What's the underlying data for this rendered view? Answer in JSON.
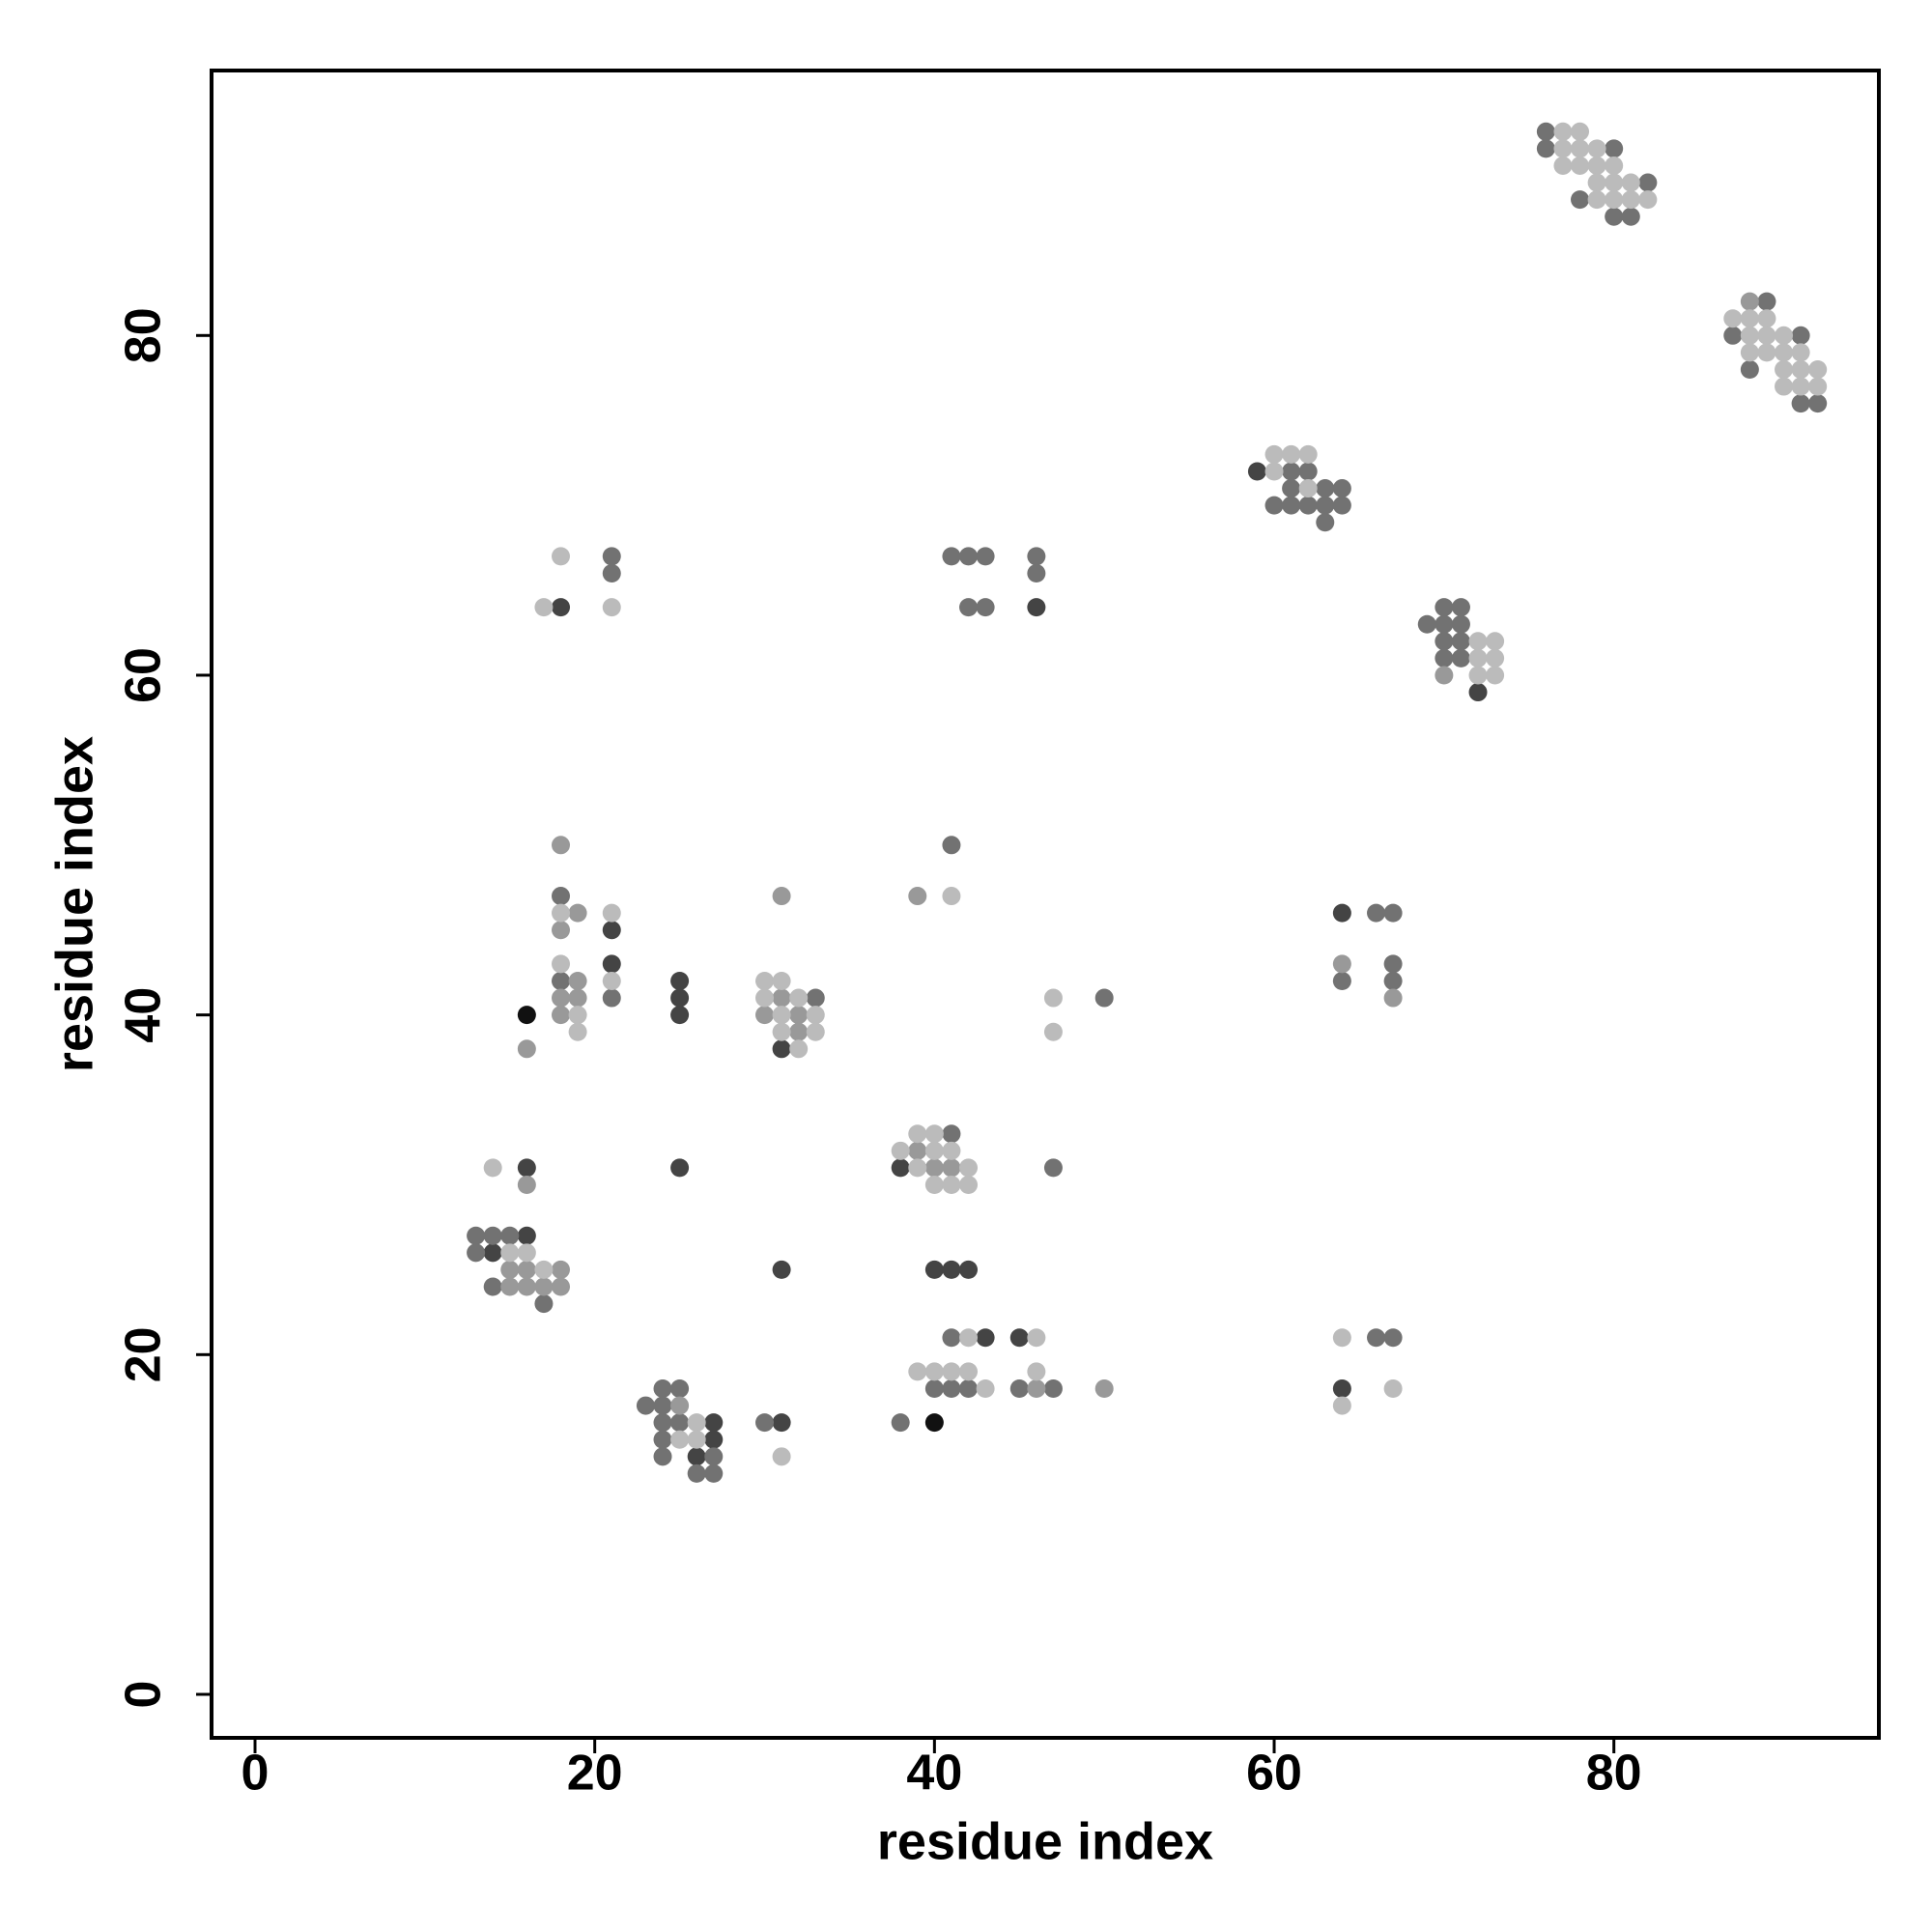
{
  "chart_data": {
    "type": "scatter",
    "x_label": "residue index",
    "y_label": "residue index",
    "xlim": [
      -2.56,
      95.6
    ],
    "ylim": [
      -2.56,
      95.6
    ],
    "xticks": [
      0,
      20,
      40,
      60,
      80
    ],
    "yticks": [
      0,
      20,
      40,
      60,
      80
    ],
    "series": [
      {
        "color": "#111111",
        "x": [
          16,
          40
        ],
        "y": [
          40,
          16
        ]
      },
      {
        "color": "#444444",
        "x": [
          59,
          72,
          18,
          46,
          21,
          21,
          25,
          25,
          25,
          31,
          64,
          38,
          16,
          25,
          16,
          14,
          31,
          40,
          41,
          42,
          43,
          45,
          64,
          27,
          27,
          26,
          31
        ],
        "y": [
          72,
          59,
          64,
          64,
          45,
          43,
          42,
          41,
          40,
          38,
          46,
          31,
          31,
          31,
          27,
          26,
          25,
          25,
          25,
          25,
          21,
          21,
          18,
          16,
          15,
          14,
          16
        ]
      },
      {
        "color": "#727272",
        "x": [
          76,
          76,
          80,
          82,
          78,
          80,
          81,
          89,
          87,
          91,
          88,
          91,
          92,
          61,
          62,
          61,
          63,
          64,
          60,
          61,
          62,
          63,
          64,
          63,
          70,
          71,
          69,
          70,
          71,
          70,
          71,
          70,
          71,
          21,
          21,
          41,
          42,
          43,
          46,
          46,
          42,
          43,
          18,
          18,
          21,
          33,
          41,
          50,
          66,
          67,
          64,
          67,
          67,
          41,
          47,
          13,
          14,
          15,
          13,
          14,
          17,
          41,
          66,
          67,
          40,
          41,
          42,
          45,
          47,
          38,
          24,
          25,
          23,
          24,
          24,
          25,
          24,
          24,
          27,
          26,
          27,
          30
        ],
        "y": [
          92,
          91,
          91,
          89,
          88,
          87,
          87,
          82,
          80,
          80,
          78,
          76,
          76,
          72,
          72,
          71,
          71,
          71,
          70,
          70,
          70,
          70,
          70,
          69,
          64,
          64,
          63,
          63,
          63,
          62,
          62,
          61,
          61,
          67,
          66,
          67,
          67,
          67,
          67,
          66,
          64,
          64,
          47,
          42,
          41,
          41,
          50,
          41,
          46,
          46,
          42,
          43,
          42,
          33,
          31,
          27,
          27,
          27,
          26,
          24,
          23,
          21,
          21,
          21,
          18,
          18,
          18,
          18,
          18,
          16,
          18,
          18,
          17,
          17,
          16,
          16,
          15,
          14,
          14,
          13,
          13,
          16
        ]
      },
      {
        "color": "#999999",
        "x": [
          88,
          70,
          18,
          19,
          18,
          19,
          18,
          19,
          18,
          16,
          31,
          31,
          30,
          32,
          32,
          39,
          64,
          67,
          39,
          40,
          41,
          16,
          15,
          16,
          18,
          15,
          16,
          17,
          18,
          46,
          50,
          25
        ],
        "y": [
          82,
          60,
          50,
          46,
          45,
          42,
          41,
          41,
          40,
          38,
          47,
          41,
          40,
          40,
          39,
          47,
          43,
          41,
          32,
          31,
          31,
          30,
          25,
          25,
          25,
          24,
          24,
          24,
          24,
          18,
          18,
          17
        ]
      },
      {
        "color": "#bbbbbb",
        "x": [
          77,
          78,
          77,
          78,
          79,
          77,
          78,
          79,
          80,
          79,
          80,
          81,
          79,
          80,
          81,
          82,
          87,
          88,
          89,
          88,
          89,
          90,
          88,
          89,
          90,
          91,
          90,
          91,
          92,
          90,
          91,
          92,
          60,
          61,
          62,
          60,
          62,
          72,
          73,
          72,
          73,
          72,
          73,
          18,
          17,
          21,
          18,
          21,
          18,
          21,
          19,
          19,
          30,
          31,
          30,
          32,
          31,
          33,
          31,
          33,
          32,
          41,
          47,
          47,
          39,
          40,
          38,
          40,
          41,
          39,
          42,
          40,
          41,
          42,
          14,
          15,
          16,
          17,
          42,
          46,
          64,
          39,
          40,
          41,
          42,
          46,
          43,
          67,
          64,
          26,
          25,
          26,
          31
        ],
        "y": [
          92,
          92,
          91,
          91,
          91,
          90,
          90,
          90,
          90,
          89,
          89,
          89,
          88,
          88,
          88,
          88,
          81,
          81,
          81,
          80,
          80,
          80,
          79,
          79,
          79,
          79,
          78,
          78,
          78,
          77,
          77,
          77,
          73,
          73,
          73,
          72,
          71,
          62,
          62,
          61,
          61,
          60,
          60,
          67,
          64,
          64,
          46,
          46,
          43,
          42,
          40,
          39,
          42,
          42,
          41,
          41,
          40,
          40,
          39,
          39,
          38,
          47,
          41,
          39,
          33,
          33,
          32,
          32,
          32,
          31,
          31,
          30,
          30,
          30,
          31,
          26,
          26,
          25,
          21,
          21,
          21,
          19,
          19,
          19,
          19,
          19,
          18,
          18,
          17,
          16,
          15,
          15,
          14
        ]
      }
    ]
  }
}
